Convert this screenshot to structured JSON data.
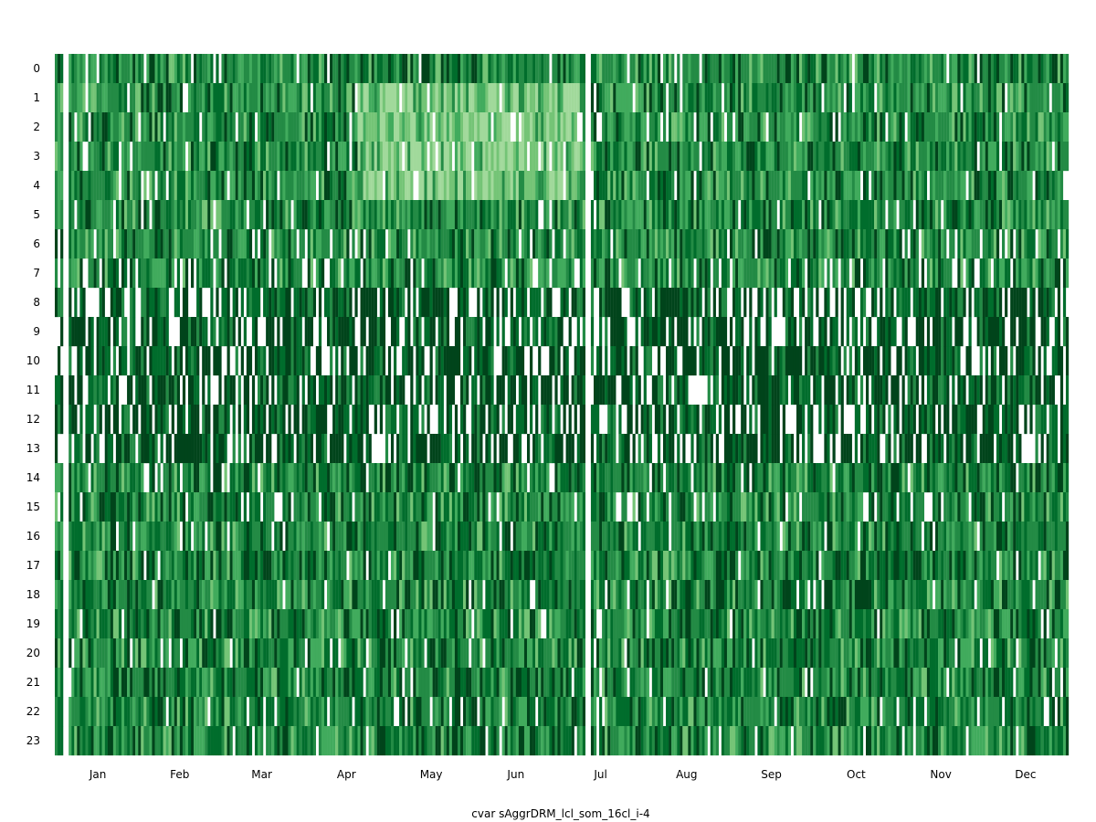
{
  "chart_data": {
    "type": "heatmap",
    "title": "",
    "xlabel": "cvar sAggrDRM_lcl_som_16cl_i-4",
    "ylabel": "",
    "y_categories": [
      "0",
      "1",
      "2",
      "3",
      "4",
      "5",
      "6",
      "7",
      "8",
      "9",
      "10",
      "11",
      "12",
      "13",
      "14",
      "15",
      "16",
      "17",
      "18",
      "19",
      "20",
      "21",
      "22",
      "23"
    ],
    "x_tick_labels": [
      "Jan",
      "Feb",
      "Mar",
      "Apr",
      "May",
      "Jun",
      "Jul",
      "Aug",
      "Sep",
      "Oct",
      "Nov",
      "Dec"
    ],
    "x_range_days": [
      1,
      365
    ],
    "month_start_days": [
      1,
      32,
      60,
      91,
      121,
      152,
      182,
      213,
      244,
      274,
      305,
      335
    ],
    "missing_days": [
      4,
      5,
      192,
      193
    ],
    "grid": false,
    "legend": "none",
    "colormap": [
      "#00441b",
      "#006d2c",
      "#238b45",
      "#41ab5d",
      "#74c476",
      "#a1d99b"
    ],
    "pattern": {
      "light_band_hours": [
        1,
        2,
        3,
        4
      ],
      "light_band_days": [
        110,
        190
      ],
      "sparse_hours": [
        8,
        9,
        10,
        11,
        12,
        13
      ],
      "dense_hours": [
        16,
        17,
        18,
        19,
        20,
        21,
        22,
        23
      ]
    }
  }
}
